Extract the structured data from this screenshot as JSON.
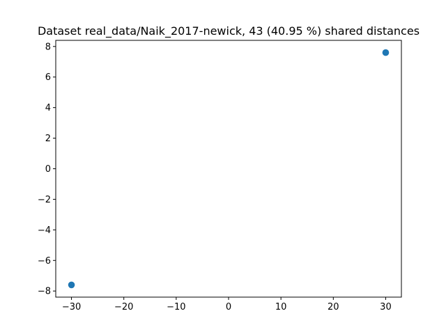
{
  "chart_data": {
    "type": "scatter",
    "title": "Dataset real_data/Naik_2017-newick, 43 (40.95 %) shared distances",
    "xlabel": "",
    "ylabel": "",
    "xlim": [
      -33,
      33
    ],
    "ylim": [
      -8.4,
      8.4
    ],
    "x_ticks": [
      -30,
      -20,
      -10,
      0,
      10,
      20,
      30
    ],
    "x_tick_labels": [
      "−30",
      "−20",
      "−10",
      "0",
      "10",
      "20",
      "30"
    ],
    "y_ticks": [
      -8,
      -6,
      -4,
      -2,
      0,
      2,
      4,
      6,
      8
    ],
    "y_tick_labels": [
      "−8",
      "−6",
      "−4",
      "−2",
      "0",
      "2",
      "4",
      "6",
      "8"
    ],
    "grid": false,
    "series": [
      {
        "color": "#1f77b4",
        "points": [
          {
            "x": -30.0,
            "y": -7.6
          },
          {
            "x": 30.0,
            "y": 7.6
          }
        ]
      }
    ]
  }
}
